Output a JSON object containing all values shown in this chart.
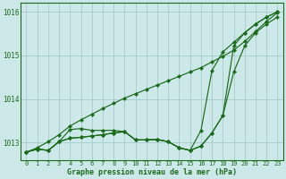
{
  "title": "Graphe pression niveau de la mer (hPa)",
  "bg_color": "#cce8e8",
  "grid_color": "#aacfcf",
  "line_color": "#1a6b1a",
  "xlim_min": -0.5,
  "xlim_max": 23.5,
  "ylim_min": 1012.6,
  "ylim_max": 1016.2,
  "yticks": [
    1013,
    1014,
    1015,
    1016
  ],
  "xticks": [
    0,
    1,
    2,
    3,
    4,
    5,
    6,
    7,
    8,
    9,
    10,
    11,
    12,
    13,
    14,
    15,
    16,
    17,
    18,
    19,
    20,
    21,
    22,
    23
  ],
  "series": [
    [
      1012.78,
      1012.85,
      1012.82,
      1013.02,
      1013.3,
      1013.32,
      1013.28,
      1013.28,
      1013.28,
      1013.25,
      1013.06,
      1013.06,
      1013.07,
      1013.02,
      1012.88,
      1012.82,
      1013.28,
      1014.65,
      1015.08,
      1015.3,
      1015.52,
      1015.72,
      1015.88,
      1016.0
    ],
    [
      1012.78,
      1012.85,
      1012.82,
      1013.02,
      1013.1,
      1013.12,
      1013.15,
      1013.18,
      1013.22,
      1013.25,
      1013.06,
      1013.06,
      1013.07,
      1013.02,
      1012.88,
      1012.82,
      1012.92,
      1013.22,
      1013.62,
      1015.22,
      1015.52,
      1015.72,
      1015.88,
      1016.0
    ],
    [
      1012.78,
      1012.85,
      1012.82,
      1013.02,
      1013.1,
      1013.12,
      1013.15,
      1013.18,
      1013.22,
      1013.25,
      1013.06,
      1013.06,
      1013.07,
      1013.02,
      1012.88,
      1012.82,
      1012.92,
      1013.22,
      1013.62,
      1014.62,
      1015.22,
      1015.52,
      1015.72,
      1015.88
    ],
    [
      1012.78,
      1012.88,
      1013.02,
      1013.18,
      1013.38,
      1013.52,
      1013.65,
      1013.78,
      1013.9,
      1014.02,
      1014.12,
      1014.22,
      1014.32,
      1014.42,
      1014.52,
      1014.62,
      1014.72,
      1014.85,
      1014.98,
      1015.12,
      1015.32,
      1015.55,
      1015.78,
      1015.98
    ]
  ]
}
